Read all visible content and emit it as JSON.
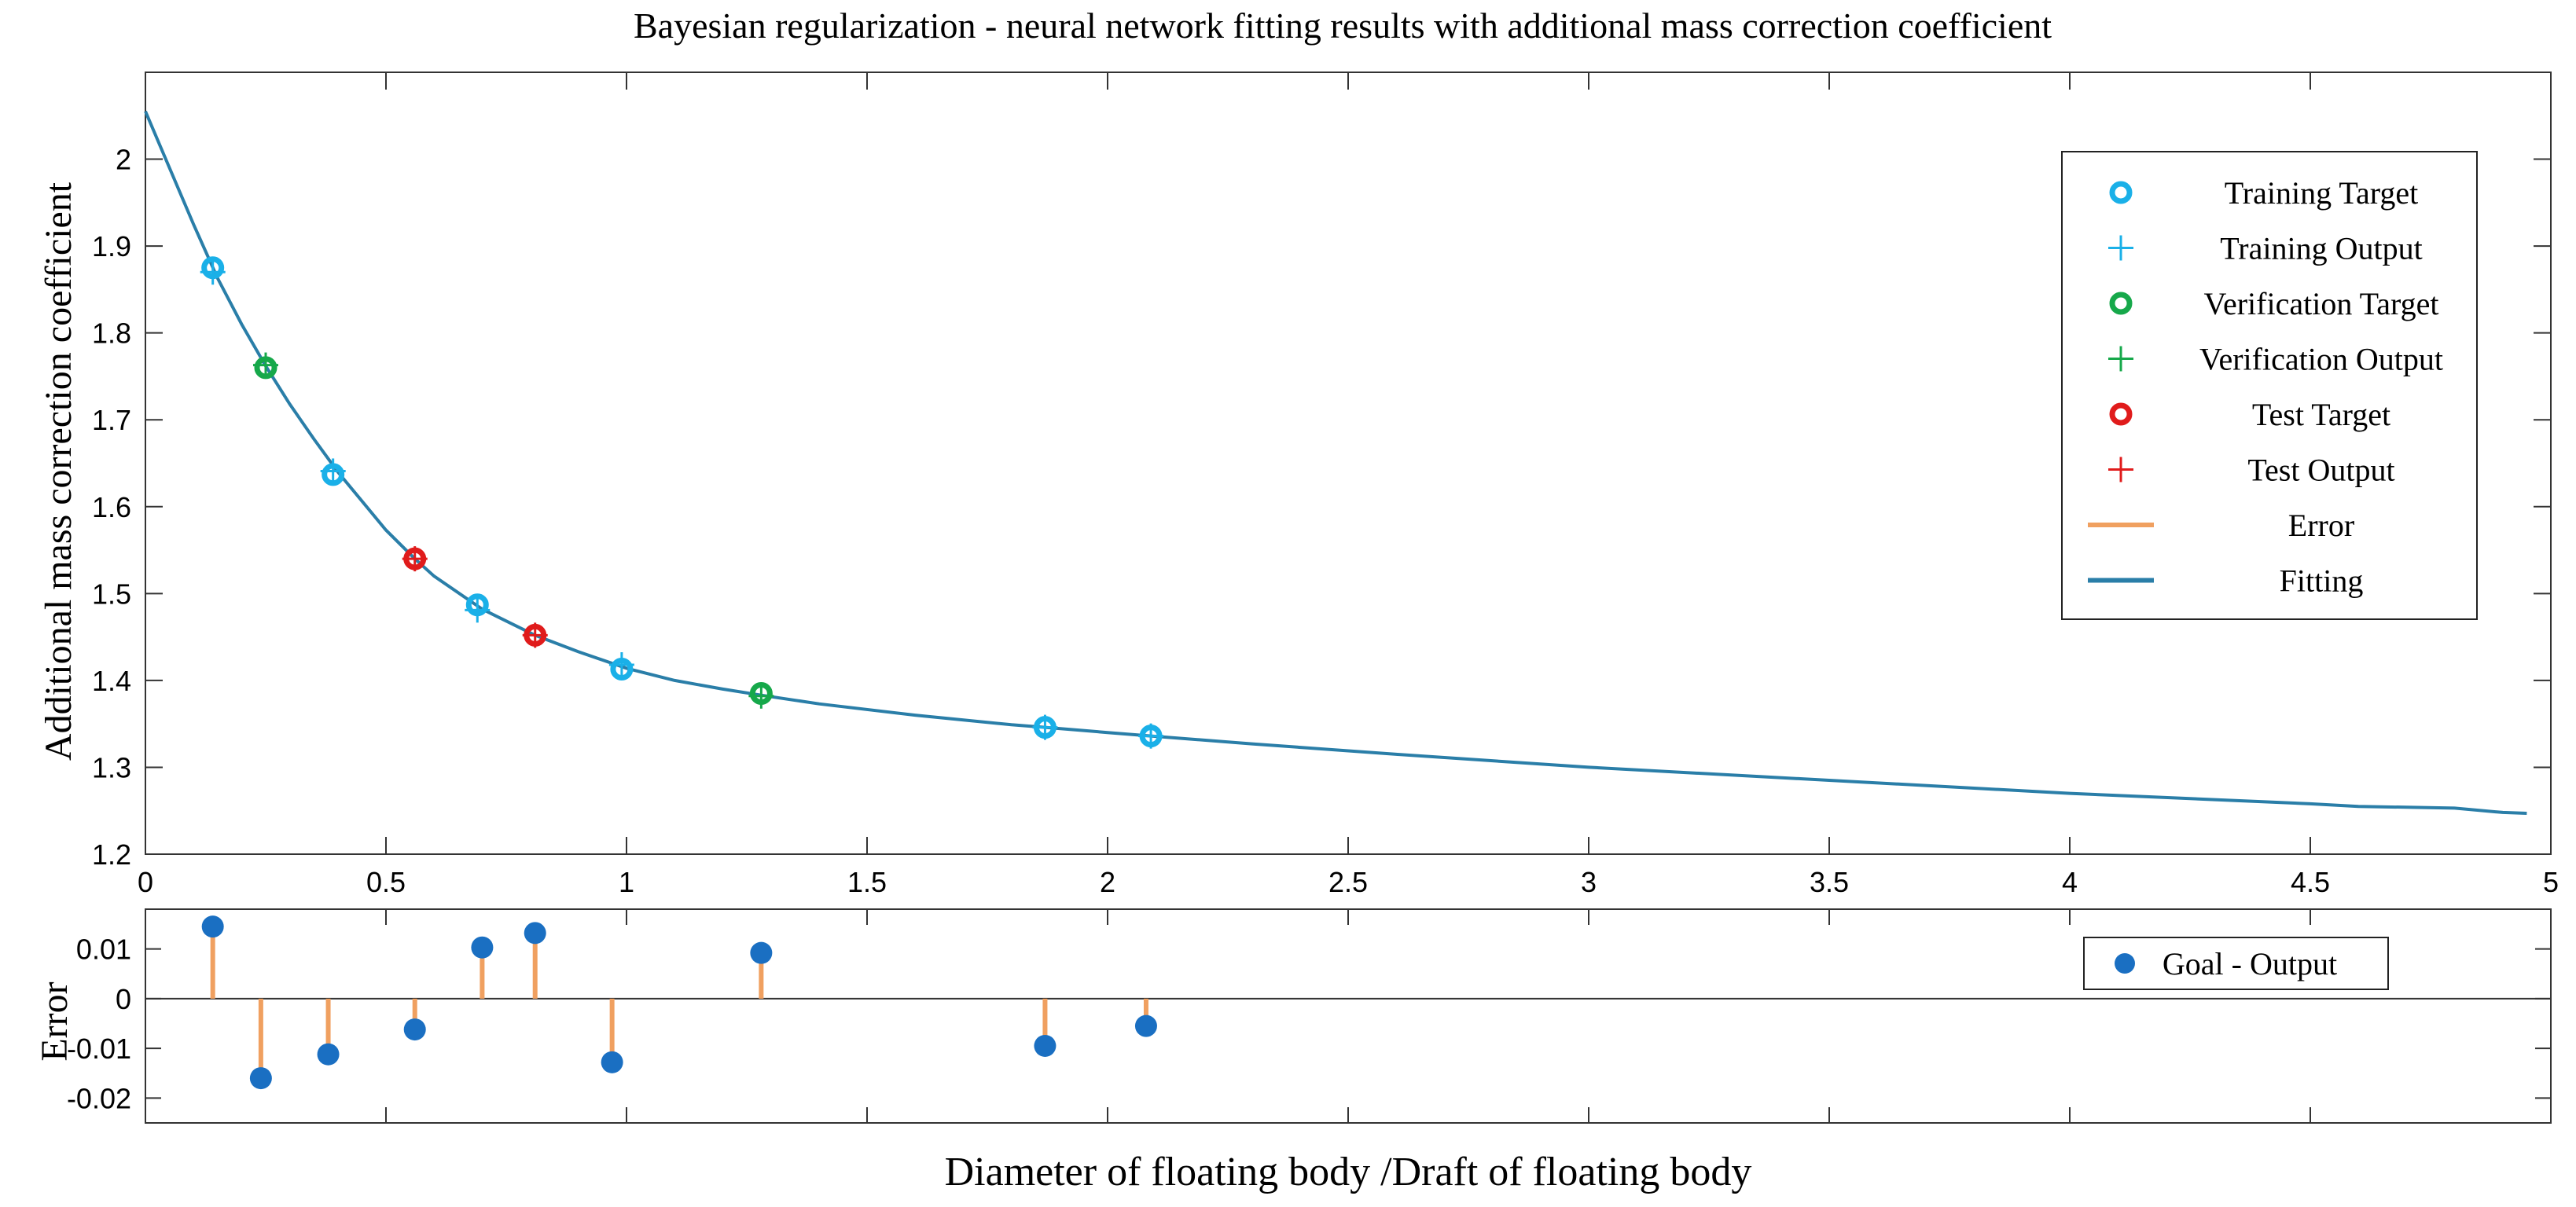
{
  "chart_data": [
    {
      "type": "line",
      "title": "Bayesian regularization - neural network fitting results with additional mass correction coefficient",
      "xlabel": "",
      "ylabel": "Additional mass correction coefficient",
      "xlim": [
        0,
        5
      ],
      "ylim": [
        1.2,
        2.1
      ],
      "xticks": [
        0,
        0.5,
        1,
        1.5,
        2,
        2.5,
        3,
        3.5,
        4,
        4.5,
        5
      ],
      "xtick_labels": [
        "0",
        "0.5",
        "1",
        "1.5",
        "2",
        "2.5",
        "3",
        "3.5",
        "4",
        "4.5",
        "5"
      ],
      "yticks": [
        1.2,
        1.3,
        1.4,
        1.5,
        1.6,
        1.7,
        1.8,
        1.9,
        2.0
      ],
      "ytick_labels": [
        "1.2",
        "1.3",
        "1.4",
        "1.5",
        "1.6",
        "1.7",
        "1.8",
        "1.9",
        "2"
      ],
      "legend_position": "top-right",
      "colors": {
        "training": "#1ab0e8",
        "verification": "#16a84a",
        "test": "#e01b1b",
        "error": "#f0a060",
        "fitting": "#2a7ea8"
      },
      "series": [
        {
          "name": "Training Target",
          "marker": "circle",
          "x": [
            0.14,
            0.39,
            0.69,
            0.99,
            1.87,
            2.09
          ],
          "y": [
            1.875,
            1.637,
            1.487,
            1.413,
            1.346,
            1.336
          ]
        },
        {
          "name": "Training Output",
          "marker": "plus",
          "x": [
            0.14,
            0.39,
            0.69,
            0.99,
            1.87,
            2.09
          ],
          "y": [
            1.87,
            1.641,
            1.481,
            1.418,
            1.346,
            1.336
          ]
        },
        {
          "name": "Verification Target",
          "marker": "circle",
          "x": [
            0.25,
            1.28
          ],
          "y": [
            1.76,
            1.385
          ]
        },
        {
          "name": "Verification Output",
          "marker": "plus",
          "x": [
            0.25,
            1.28
          ],
          "y": [
            1.763,
            1.382
          ]
        },
        {
          "name": "Test Target",
          "marker": "circle",
          "x": [
            0.56,
            0.81
          ],
          "y": [
            1.54,
            1.452
          ]
        },
        {
          "name": "Test Output",
          "marker": "plus",
          "x": [
            0.56,
            0.81
          ],
          "y": [
            1.54,
            1.452
          ]
        },
        {
          "name": "Error",
          "marker": "line",
          "x": [],
          "y": []
        },
        {
          "name": "Fitting",
          "marker": "line",
          "x": [
            0,
            0.05,
            0.1,
            0.15,
            0.2,
            0.25,
            0.3,
            0.35,
            0.4,
            0.5,
            0.56,
            0.6,
            0.7,
            0.81,
            0.9,
            1.0,
            1.1,
            1.2,
            1.28,
            1.4,
            1.6,
            1.8,
            1.87,
            2.0,
            2.09,
            2.3,
            2.6,
            3.0,
            3.5,
            4.0,
            4.5,
            4.6,
            4.8,
            4.9,
            4.95
          ],
          "y": [
            2.055,
            1.99,
            1.925,
            1.863,
            1.81,
            1.762,
            1.718,
            1.678,
            1.64,
            1.573,
            1.54,
            1.52,
            1.482,
            1.452,
            1.433,
            1.414,
            1.4,
            1.39,
            1.383,
            1.373,
            1.36,
            1.349,
            1.346,
            1.34,
            1.336,
            1.327,
            1.315,
            1.3,
            1.285,
            1.27,
            1.258,
            1.255,
            1.253,
            1.248,
            1.247
          ]
        }
      ]
    },
    {
      "type": "stem",
      "title": "",
      "xlabel": "Diameter of floating body /Draft of floating body",
      "ylabel": "Error",
      "xlim": [
        0,
        5
      ],
      "ylim": [
        -0.025,
        0.018
      ],
      "xticks": [
        0,
        0.5,
        1,
        1.5,
        2,
        2.5,
        3,
        3.5,
        4,
        4.5,
        5
      ],
      "yticks": [
        -0.02,
        -0.01,
        0,
        0.01
      ],
      "ytick_labels": [
        "-0.02",
        "-0.01",
        "0",
        "0.01"
      ],
      "legend_position": "top-right",
      "legend_label": "Goal - Output",
      "colors": {
        "dot": "#1a6fc2",
        "stem": "#f0a060"
      },
      "series": [
        {
          "name": "Goal - Output",
          "x": [
            0.14,
            0.24,
            0.38,
            0.56,
            0.7,
            0.81,
            0.97,
            1.28,
            1.87,
            2.08
          ],
          "y": [
            0.0145,
            -0.016,
            -0.0112,
            -0.0062,
            0.0103,
            0.0132,
            -0.0128,
            0.0092,
            -0.0095,
            -0.0055
          ]
        }
      ]
    }
  ]
}
